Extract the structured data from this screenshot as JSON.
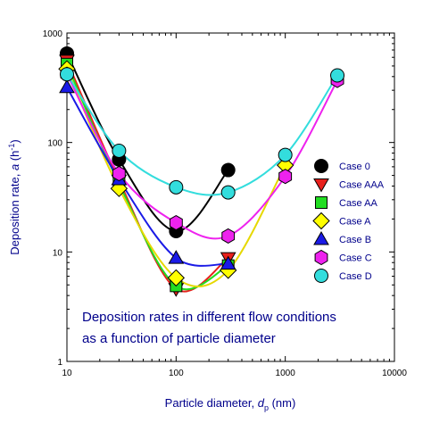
{
  "chart_data": {
    "type": "scatter",
    "title": "",
    "xlabel": {
      "main": "Particle diameter, ",
      "var": "d",
      "sub": "p",
      "unit": " (nm)"
    },
    "ylabel": {
      "main": "Deposition rate, ",
      "var": "a",
      "unit": " (h",
      "sup": "-1",
      "close": ")"
    },
    "xscale": "log",
    "yscale": "log",
    "xlim": [
      10,
      10000
    ],
    "ylim": [
      1,
      1000
    ],
    "xticks": [
      "10",
      "100",
      "1000",
      "10000"
    ],
    "yticks": [
      "1",
      "10",
      "100",
      "1000"
    ],
    "grid": false,
    "legend_position": "right",
    "annotation": [
      "Deposition rates in different flow conditions",
      "as a function of particle diameter"
    ],
    "series": [
      {
        "name": "Case 0",
        "marker": "circle",
        "color": "#000000",
        "line_color": "#000000",
        "x": [
          10,
          30,
          100,
          300
        ],
        "y": [
          650,
          70,
          15.5,
          56
        ]
      },
      {
        "name": "Case AAA",
        "marker": "triangle-down",
        "color": "#e8201c",
        "line_color": "#e8201c",
        "x": [
          10,
          30,
          100,
          300
        ],
        "y": [
          560,
          45,
          4.6,
          8.8
        ]
      },
      {
        "name": "Case AA",
        "marker": "square",
        "color": "#22dd22",
        "line_color": "#22dd22",
        "x": [
          10,
          30,
          100,
          300
        ],
        "y": [
          520,
          42,
          4.9,
          7.5
        ]
      },
      {
        "name": "Case A",
        "marker": "diamond",
        "color": "#ffff00",
        "line_color": "#e6d800",
        "x": [
          10,
          30,
          100,
          300,
          1000
        ],
        "y": [
          470,
          38,
          5.8,
          6.8,
          62
        ]
      },
      {
        "name": "Case B",
        "marker": "triangle-up",
        "color": "#1a1ae6",
        "line_color": "#1a1ae6",
        "x": [
          10,
          30,
          100,
          300
        ],
        "y": [
          320,
          46,
          8.8,
          7.8
        ]
      },
      {
        "name": "Case C",
        "marker": "hexagon",
        "color": "#ee22ee",
        "line_color": "#ee22ee",
        "x": [
          10,
          30,
          100,
          300,
          1000,
          3000
        ],
        "y": [
          420,
          52,
          18.5,
          14,
          49,
          370
        ]
      },
      {
        "name": "Case D",
        "marker": "circle",
        "color": "#33dddd",
        "line_color": "#33dddd",
        "x": [
          10,
          30,
          100,
          300,
          1000,
          3000
        ],
        "y": [
          420,
          84,
          39,
          35,
          77,
          410
        ]
      }
    ]
  }
}
